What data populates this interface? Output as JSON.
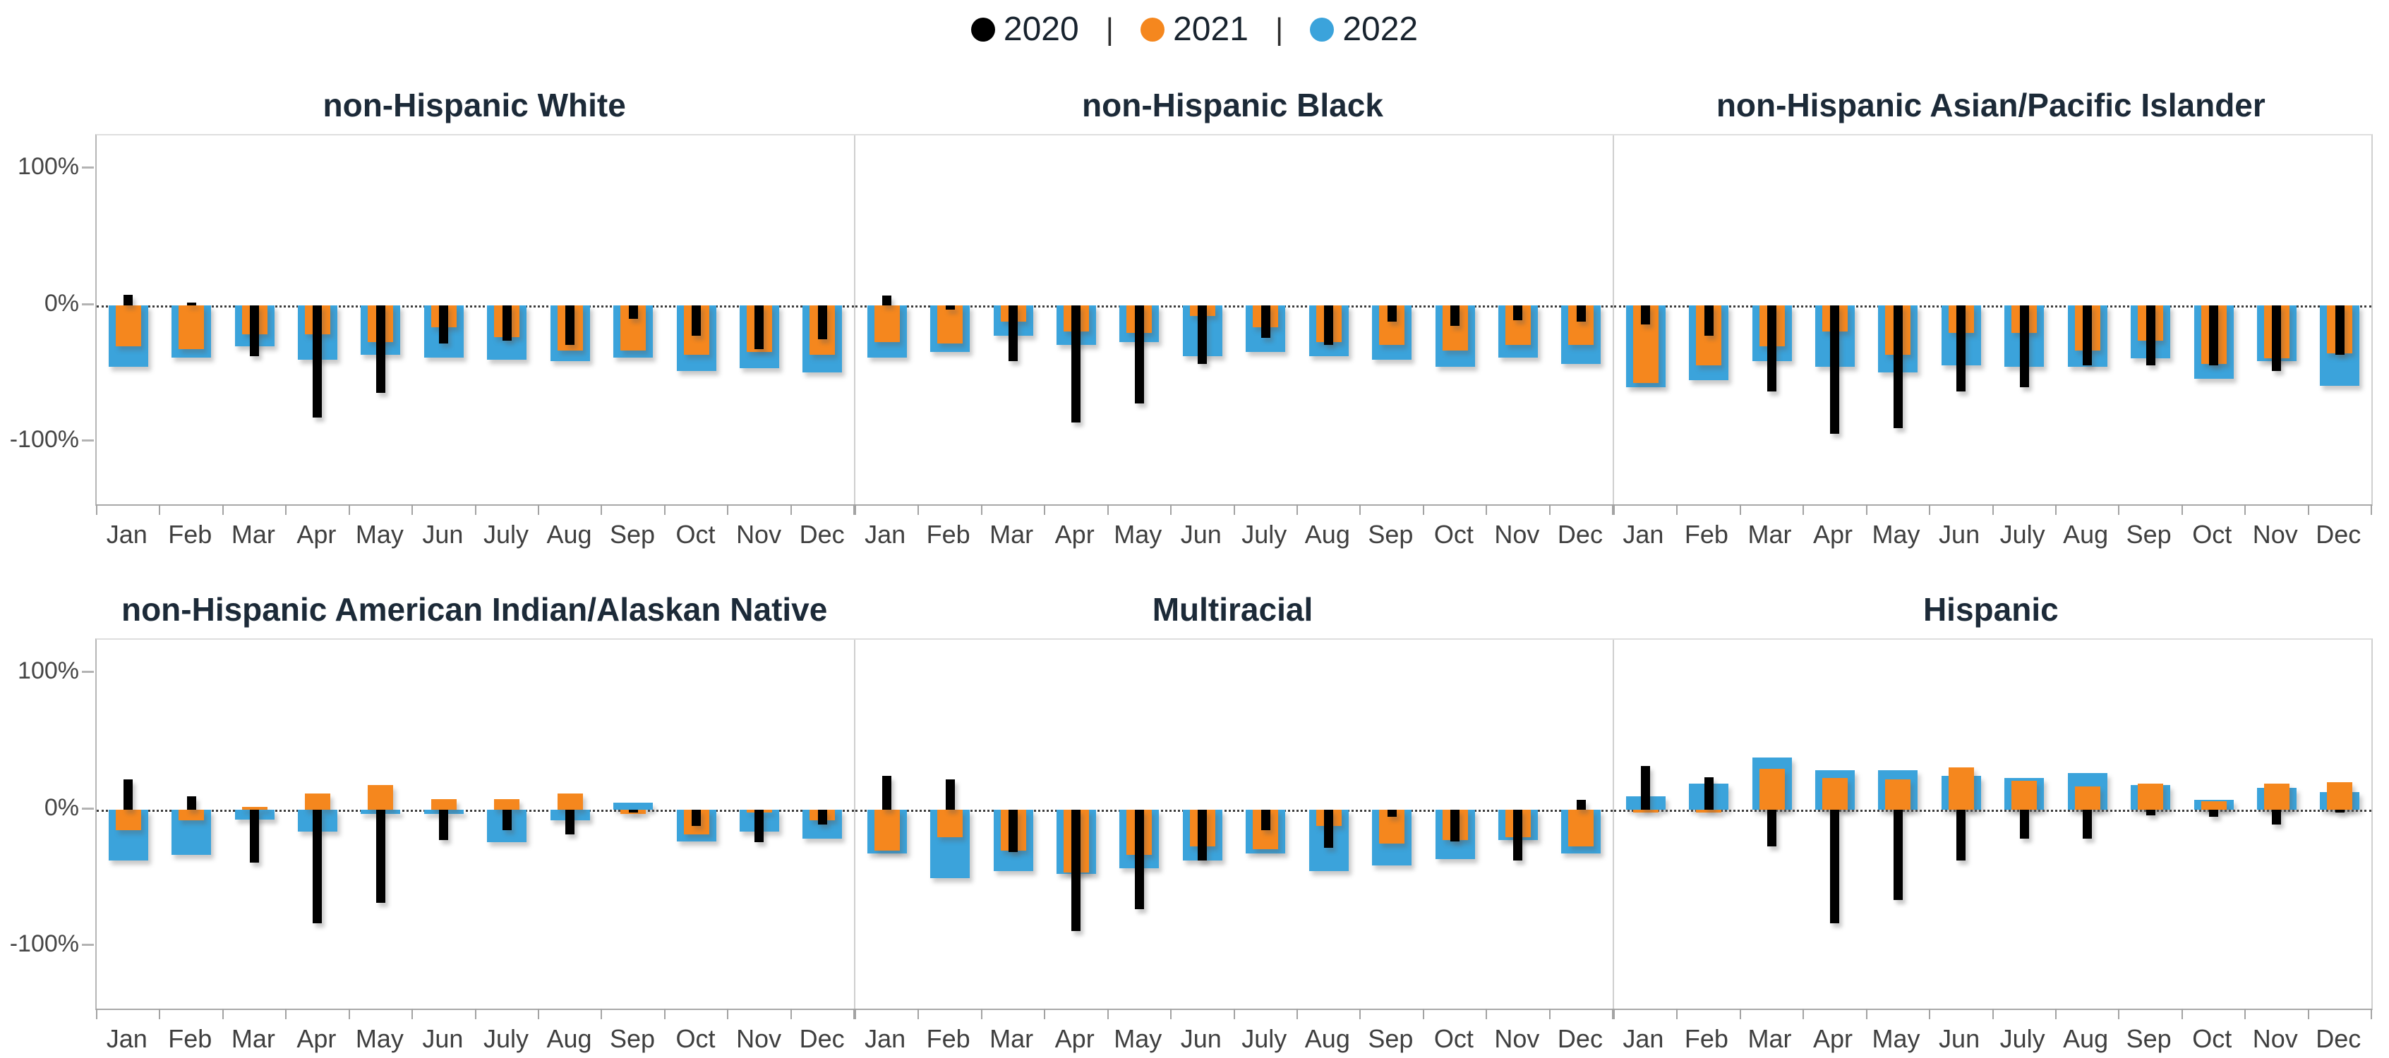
{
  "legend": {
    "separator": "|",
    "items": [
      {
        "label": "2020",
        "color": "#000000"
      },
      {
        "label": "2021",
        "color": "#F5871E"
      },
      {
        "label": "2022",
        "color": "#3BA3DB"
      }
    ]
  },
  "y_axis": {
    "ticks": [
      "100%",
      "0%",
      "-100%"
    ]
  },
  "months": [
    "Jan",
    "Feb",
    "Mar",
    "Apr",
    "May",
    "Jun",
    "July",
    "Aug",
    "Sep",
    "Oct",
    "Nov",
    "Dec"
  ],
  "chart_data": {
    "type": "bar",
    "categories": [
      "Jan",
      "Feb",
      "Mar",
      "Apr",
      "May",
      "Jun",
      "July",
      "Aug",
      "Sep",
      "Oct",
      "Nov",
      "Dec"
    ],
    "ylabel": "",
    "xlabel": "",
    "ylim": [
      -130,
      125
    ],
    "y_ticks_pct": [
      100,
      0,
      -100
    ],
    "grid": "zero-line-only",
    "legend_position": "top-center",
    "series_colors": {
      "2020": "#000000",
      "2021": "#F5871E",
      "2022": "#3BA3DB"
    },
    "panels": [
      {
        "title": "non-Hispanic White",
        "series": [
          {
            "name": "2020",
            "values": [
              8,
              2,
              -37,
              -82,
              -64,
              -28,
              -26,
              -29,
              -10,
              -22,
              -32,
              -25
            ]
          },
          {
            "name": "2021",
            "values": [
              -30,
              -32,
              -21,
              -21,
              -27,
              -16,
              -23,
              -33,
              -33,
              -36,
              -34,
              -36
            ]
          },
          {
            "name": "2022",
            "values": [
              -45,
              -38,
              -30,
              -40,
              -36,
              -38,
              -40,
              -41,
              -38,
              -48,
              -46,
              -49
            ]
          }
        ]
      },
      {
        "title": "non-Hispanic Black",
        "series": [
          {
            "name": "2020",
            "values": [
              7,
              -3,
              -41,
              -86,
              -72,
              -43,
              -24,
              -29,
              -12,
              -15,
              -11,
              -12
            ]
          },
          {
            "name": "2021",
            "values": [
              -27,
              -28,
              -12,
              -19,
              -20,
              -8,
              -16,
              -27,
              -29,
              -33,
              -29,
              -29
            ]
          },
          {
            "name": "2022",
            "values": [
              -38,
              -34,
              -22,
              -29,
              -27,
              -37,
              -34,
              -37,
              -40,
              -45,
              -38,
              -43
            ]
          }
        ]
      },
      {
        "title": "non-Hispanic Asian/Pacific Islander",
        "series": [
          {
            "name": "2020",
            "values": [
              -14,
              -22,
              -63,
              -94,
              -90,
              -63,
              -60,
              -44,
              -44,
              -44,
              -48,
              -36
            ]
          },
          {
            "name": "2021",
            "values": [
              -57,
              -44,
              -30,
              -19,
              -36,
              -20,
              -20,
              -33,
              -26,
              -43,
              -39,
              -35
            ]
          },
          {
            "name": "2022",
            "values": [
              -60,
              -55,
              -41,
              -45,
              -49,
              -44,
              -45,
              -45,
              -39,
              -54,
              -41,
              -59
            ]
          }
        ]
      },
      {
        "title": "non-Hispanic American Indian/Alaskan Native",
        "series": [
          {
            "name": "2020",
            "values": [
              22,
              10,
              -39,
              -83,
              -68,
              -22,
              -15,
              -18,
              -2,
              -12,
              -24,
              -11
            ]
          },
          {
            "name": "2021",
            "values": [
              -15,
              -8,
              2,
              12,
              18,
              8,
              8,
              12,
              -3,
              -18,
              -2,
              -8
            ]
          },
          {
            "name": "2022",
            "values": [
              -37,
              -33,
              -7,
              -16,
              -3,
              -3,
              -24,
              -8,
              5,
              -23,
              -16,
              -21
            ]
          }
        ]
      },
      {
        "title": "Multiracial",
        "series": [
          {
            "name": "2020",
            "values": [
              25,
              22,
              -31,
              -89,
              -73,
              -37,
              -15,
              -28,
              -5,
              -23,
              -37,
              7
            ]
          },
          {
            "name": "2021",
            "values": [
              -30,
              -20,
              -30,
              -46,
              -33,
              -27,
              -29,
              -12,
              -25,
              -22,
              -20,
              -27
            ]
          },
          {
            "name": "2022",
            "values": [
              -32,
              -50,
              -45,
              -47,
              -43,
              -37,
              -32,
              -45,
              -41,
              -36,
              -22,
              -32
            ]
          }
        ]
      },
      {
        "title": "Hispanic",
        "series": [
          {
            "name": "2020",
            "values": [
              32,
              24,
              -27,
              -83,
              -66,
              -37,
              -21,
              -21,
              -4,
              -5,
              -11,
              -2
            ]
          },
          {
            "name": "2021",
            "values": [
              -2,
              -2,
              30,
              23,
              22,
              31,
              21,
              17,
              19,
              6,
              19,
              20
            ]
          },
          {
            "name": "2022",
            "values": [
              10,
              19,
              38,
              29,
              29,
              25,
              23,
              27,
              18,
              7,
              16,
              13
            ]
          }
        ]
      }
    ]
  }
}
